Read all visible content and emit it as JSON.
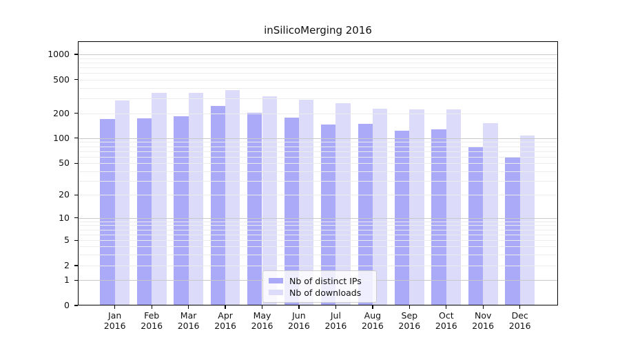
{
  "chart_data": {
    "type": "bar",
    "title": "inSilicoMerging 2016",
    "categories": [
      "Jan 2016",
      "Feb 2016",
      "Mar 2016",
      "Apr 2016",
      "May 2016",
      "Jun 2016",
      "Jul 2016",
      "Aug 2016",
      "Sep 2016",
      "Oct 2016",
      "Nov 2016",
      "Dec 2016"
    ],
    "series": [
      {
        "name": "Nb of distinct IPs",
        "color": "#aaaaf8",
        "values": [
          169,
          174,
          184,
          242,
          201,
          176,
          147,
          149,
          124,
          128,
          80,
          59
        ]
      },
      {
        "name": "Nb of downloads",
        "color": "#dcdcfa",
        "values": [
          283,
          348,
          347,
          373,
          316,
          288,
          265,
          227,
          222,
          221,
          151,
          108
        ]
      }
    ],
    "xlabel": "",
    "ylabel": "",
    "yscale": "symlog",
    "ylim": [
      0,
      1400
    ],
    "y_ticks": [
      0,
      1,
      2,
      5,
      10,
      20,
      50,
      100,
      200,
      500,
      1000
    ],
    "y_tick_labels": [
      "0",
      "1",
      "2",
      "5",
      "10",
      "20",
      "50",
      "100",
      "200",
      "500",
      "1000"
    ],
    "grid": true,
    "legend_position": "lower center",
    "colors": {
      "bar_dark": "#aaaaf8",
      "bar_light": "#dcdcfa",
      "grid_major": "#c9c9c9",
      "grid_minor": "#ececec",
      "axis": "#000000",
      "text": "#111111"
    }
  }
}
